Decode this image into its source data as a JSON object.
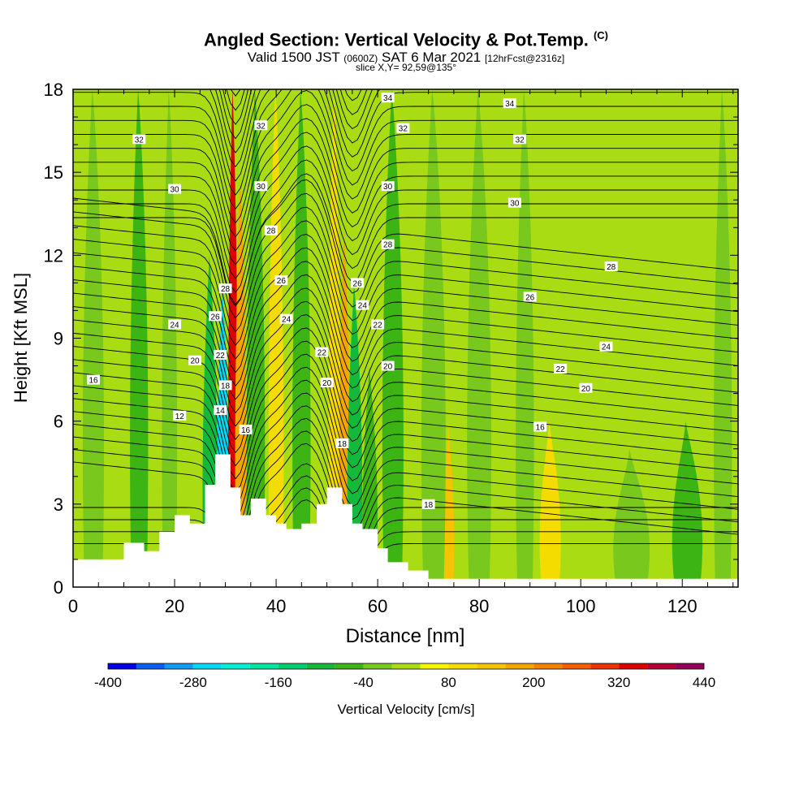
{
  "header": {
    "title": "Angled Section: Vertical Velocity & Pot.Temp.",
    "title_tag": "(C)",
    "valid_prefix": "Valid 1500 JST",
    "valid_utc": "(0600Z)",
    "valid_date": "SAT 6 Mar 2021",
    "forecast": "[12hrFcst@2316z]",
    "slice": "slice X,Y= 92,59@135°"
  },
  "chart_data": {
    "type": "heatmap",
    "xlabel": "Distance [nm]",
    "ylabel": "Height [Kft MSL]",
    "xlim": [
      0,
      131
    ],
    "ylim": [
      0,
      18
    ],
    "xticks": [
      0,
      20,
      40,
      60,
      80,
      100,
      120
    ],
    "yticks": [
      0,
      3,
      6,
      9,
      12,
      15,
      18
    ],
    "colorbar": {
      "label": "Vertical Velocity [cm/s]",
      "min": -400,
      "max": 440,
      "step": 40,
      "tick_values": [
        -400,
        -280,
        -160,
        -40,
        80,
        200,
        320,
        440
      ],
      "tick_labels": [
        "-400",
        "-280",
        "-160",
        "-40",
        "80",
        "200",
        "320",
        "440"
      ],
      "colors": [
        "#0000e6",
        "#0a5ff2",
        "#129bf5",
        "#00d7f5",
        "#00f0d2",
        "#00e6a0",
        "#00cd6e",
        "#14b93c",
        "#3cb414",
        "#78c81e",
        "#aadc14",
        "#f5f500",
        "#f5dc00",
        "#f5c300",
        "#f5a500",
        "#f58200",
        "#f55f00",
        "#eb3200",
        "#dc0000",
        "#b40032",
        "#96005a",
        "#6e0078"
      ]
    },
    "terrain_kft": [
      [
        0,
        1
      ],
      [
        10,
        1
      ],
      [
        10,
        1.6
      ],
      [
        14,
        1.6
      ],
      [
        14,
        1.3
      ],
      [
        17,
        1.3
      ],
      [
        17,
        2
      ],
      [
        20,
        2
      ],
      [
        20,
        2.6
      ],
      [
        23,
        2.6
      ],
      [
        23,
        2.3
      ],
      [
        26,
        2.3
      ],
      [
        26,
        3.7
      ],
      [
        28,
        3.7
      ],
      [
        28,
        4.8
      ],
      [
        31,
        4.8
      ],
      [
        31,
        3.6
      ],
      [
        33,
        3.6
      ],
      [
        33,
        2.6
      ],
      [
        35,
        2.6
      ],
      [
        35,
        3.2
      ],
      [
        38,
        3.2
      ],
      [
        38,
        2.6
      ],
      [
        40,
        2.6
      ],
      [
        40,
        2.3
      ],
      [
        42,
        2.3
      ],
      [
        42,
        2.1
      ],
      [
        45,
        2.1
      ],
      [
        45,
        2.3
      ],
      [
        48,
        2.3
      ],
      [
        48,
        3.0
      ],
      [
        50,
        3.0
      ],
      [
        50,
        3.6
      ],
      [
        53,
        3.6
      ],
      [
        53,
        3.0
      ],
      [
        55,
        3.0
      ],
      [
        55,
        2.3
      ],
      [
        57,
        2.3
      ],
      [
        57,
        2.1
      ],
      [
        60,
        2.1
      ],
      [
        60,
        1.4
      ],
      [
        62,
        1.4
      ],
      [
        62,
        0.9
      ],
      [
        66,
        0.9
      ],
      [
        66,
        0.6
      ],
      [
        70,
        0.6
      ],
      [
        70,
        0.3
      ],
      [
        131,
        0.3
      ]
    ],
    "velocity_bands": [
      {
        "x": 4,
        "w": 3.5,
        "top": 18,
        "v": -40
      },
      {
        "x": 13,
        "w": 3.0,
        "top": 18,
        "v": -60
      },
      {
        "x": 19,
        "w": 2.5,
        "top": 18,
        "v": -30
      },
      {
        "x": 27,
        "w": 2.5,
        "top": 12,
        "v": -120
      },
      {
        "x": 29.5,
        "w": 2.0,
        "top": 11,
        "v": -280
      },
      {
        "x": 31.5,
        "w": 1.6,
        "top": 18,
        "v": 330
      },
      {
        "x": 33,
        "w": 1.8,
        "top": 15,
        "v": 180
      },
      {
        "x": 35.5,
        "w": 2.5,
        "top": 8,
        "v": -180
      },
      {
        "x": 36,
        "w": 3.0,
        "top": 18,
        "v": -70
      },
      {
        "x": 40,
        "w": 2.5,
        "top": 18,
        "v": 100
      },
      {
        "x": 45,
        "w": 3.0,
        "top": 18,
        "v": -50
      },
      {
        "x": 51.5,
        "w": 2.0,
        "top": 18,
        "v": 110
      },
      {
        "x": 53.5,
        "w": 1.8,
        "top": 13,
        "v": 170
      },
      {
        "x": 55.5,
        "w": 2.5,
        "top": 11,
        "v": -120
      },
      {
        "x": 58.5,
        "w": 2.5,
        "top": 8,
        "v": -60
      },
      {
        "x": 63,
        "w": 3.5,
        "top": 18,
        "v": -50
      },
      {
        "x": 74,
        "w": 1.8,
        "top": 6,
        "v": 130
      },
      {
        "x": 71,
        "w": 4.0,
        "top": 18,
        "v": -40
      },
      {
        "x": 80,
        "w": 4.0,
        "top": 18,
        "v": -40
      },
      {
        "x": 94,
        "w": 3.5,
        "top": 6,
        "v": 90
      },
      {
        "x": 89,
        "w": 3.0,
        "top": 18,
        "v": -30
      },
      {
        "x": 110,
        "w": 6.0,
        "top": 5,
        "v": -40
      },
      {
        "x": 121,
        "w": 5.0,
        "top": 6,
        "v": -50
      },
      {
        "x": 128,
        "w": 3.0,
        "top": 18,
        "v": -30
      }
    ],
    "theta_levels_c": [
      12,
      14,
      16,
      18,
      20,
      22,
      24,
      26,
      28,
      30,
      32,
      34
    ],
    "contour_labels": [
      {
        "text": "32",
        "x": 13,
        "y": 16.2
      },
      {
        "text": "30",
        "x": 20,
        "y": 14.4
      },
      {
        "text": "24",
        "x": 20,
        "y": 9.5
      },
      {
        "text": "20",
        "x": 24,
        "y": 8.2
      },
      {
        "text": "16",
        "x": 4,
        "y": 7.5
      },
      {
        "text": "12",
        "x": 21,
        "y": 6.2
      },
      {
        "text": "22",
        "x": 29,
        "y": 8.4
      },
      {
        "text": "26",
        "x": 28,
        "y": 9.8
      },
      {
        "text": "28",
        "x": 30,
        "y": 10.8
      },
      {
        "text": "18",
        "x": 30,
        "y": 7.3
      },
      {
        "text": "14",
        "x": 29,
        "y": 6.4
      },
      {
        "text": "32",
        "x": 37,
        "y": 16.7
      },
      {
        "text": "30",
        "x": 37,
        "y": 14.5
      },
      {
        "text": "28",
        "x": 39,
        "y": 12.9
      },
      {
        "text": "26",
        "x": 41,
        "y": 11.1
      },
      {
        "text": "24",
        "x": 42,
        "y": 9.7
      },
      {
        "text": "22",
        "x": 49,
        "y": 8.5
      },
      {
        "text": "20",
        "x": 50,
        "y": 7.4
      },
      {
        "text": "16",
        "x": 34,
        "y": 5.7
      },
      {
        "text": "18",
        "x": 53,
        "y": 5.2
      },
      {
        "text": "34",
        "x": 62,
        "y": 17.7
      },
      {
        "text": "32",
        "x": 65,
        "y": 16.6
      },
      {
        "text": "30",
        "x": 62,
        "y": 14.5
      },
      {
        "text": "28",
        "x": 62,
        "y": 12.4
      },
      {
        "text": "26",
        "x": 56,
        "y": 11.0
      },
      {
        "text": "24",
        "x": 57,
        "y": 10.2
      },
      {
        "text": "22",
        "x": 60,
        "y": 9.5
      },
      {
        "text": "20",
        "x": 62,
        "y": 8.0
      },
      {
        "text": "34",
        "x": 86,
        "y": 17.5
      },
      {
        "text": "32",
        "x": 88,
        "y": 16.2
      },
      {
        "text": "30",
        "x": 87,
        "y": 13.9
      },
      {
        "text": "28",
        "x": 106,
        "y": 11.6
      },
      {
        "text": "26",
        "x": 90,
        "y": 10.5
      },
      {
        "text": "24",
        "x": 105,
        "y": 8.7
      },
      {
        "text": "22",
        "x": 96,
        "y": 7.9
      },
      {
        "text": "20",
        "x": 101,
        "y": 7.2
      },
      {
        "text": "16",
        "x": 92,
        "y": 5.8
      },
      {
        "text": "18",
        "x": 70,
        "y": 3.0
      }
    ]
  }
}
